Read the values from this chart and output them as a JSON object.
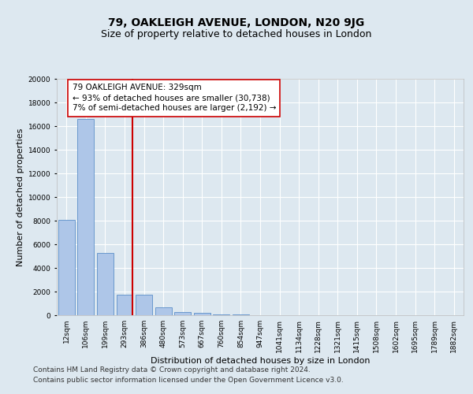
{
  "title": "79, OAKLEIGH AVENUE, LONDON, N20 9JG",
  "subtitle": "Size of property relative to detached houses in London",
  "xlabel": "Distribution of detached houses by size in London",
  "ylabel": "Number of detached properties",
  "footnote1": "Contains HM Land Registry data © Crown copyright and database right 2024.",
  "footnote2": "Contains public sector information licensed under the Open Government Licence v3.0.",
  "bar_labels": [
    "12sqm",
    "106sqm",
    "199sqm",
    "293sqm",
    "386sqm",
    "480sqm",
    "573sqm",
    "667sqm",
    "760sqm",
    "854sqm",
    "947sqm",
    "1041sqm",
    "1134sqm",
    "1228sqm",
    "1321sqm",
    "1415sqm",
    "1508sqm",
    "1602sqm",
    "1695sqm",
    "1789sqm",
    "1882sqm"
  ],
  "bar_values": [
    8100,
    16600,
    5300,
    1750,
    1750,
    700,
    300,
    175,
    100,
    50,
    20,
    0,
    0,
    0,
    0,
    0,
    0,
    0,
    0,
    0,
    0
  ],
  "bar_color": "#aec6e8",
  "bar_edge_color": "#5b8fc9",
  "vline_color": "#cc0000",
  "vline_x_index": 3,
  "annotation_line1": "79 OAKLEIGH AVENUE: 329sqm",
  "annotation_line2": "← 93% of detached houses are smaller (30,738)",
  "annotation_line3": "7% of semi-detached houses are larger (2,192) →",
  "annotation_box_color": "#ffffff",
  "annotation_box_edge": "#cc0000",
  "ylim": [
    0,
    20000
  ],
  "yticks": [
    0,
    2000,
    4000,
    6000,
    8000,
    10000,
    12000,
    14000,
    16000,
    18000,
    20000
  ],
  "background_color": "#dde8f0",
  "grid_color": "#ffffff",
  "title_fontsize": 10,
  "subtitle_fontsize": 9,
  "axis_label_fontsize": 8,
  "tick_fontsize": 6.5,
  "annotation_fontsize": 7.5,
  "footnote_fontsize": 6.5
}
